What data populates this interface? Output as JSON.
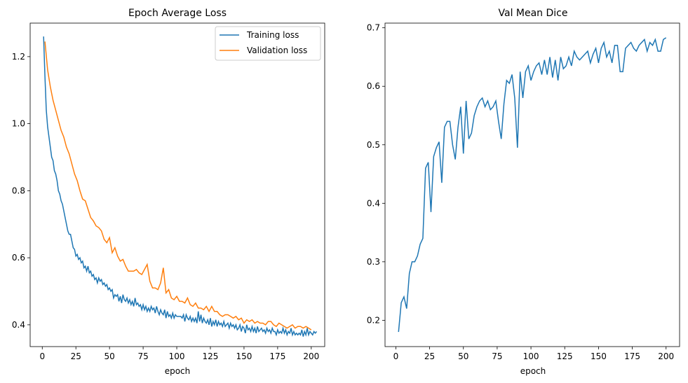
{
  "colors": {
    "blue": "#1f77b4",
    "orange": "#ff7f0e"
  },
  "chart_data": [
    {
      "type": "line",
      "title": "Epoch Average Loss",
      "xlabel": "epoch",
      "ylabel": "",
      "xlim": [
        -9,
        210
      ],
      "ylim": [
        0.335,
        1.3
      ],
      "xticks": [
        0,
        25,
        50,
        75,
        100,
        125,
        150,
        175,
        200
      ],
      "yticks": [
        0.4,
        0.6,
        0.8,
        1.0,
        1.2
      ],
      "ytick_decimals": 1,
      "legend": "top-right",
      "series": [
        {
          "name": "Training loss",
          "color": "#1f77b4",
          "x_start": 1,
          "x_step": 1,
          "values": [
            1.26,
            1.14,
            1.04,
            0.99,
            0.96,
            0.93,
            0.9,
            0.89,
            0.86,
            0.85,
            0.83,
            0.8,
            0.79,
            0.77,
            0.76,
            0.74,
            0.72,
            0.7,
            0.68,
            0.67,
            0.67,
            0.65,
            0.63,
            0.625,
            0.605,
            0.61,
            0.595,
            0.6,
            0.585,
            0.59,
            0.57,
            0.575,
            0.56,
            0.575,
            0.555,
            0.56,
            0.545,
            0.55,
            0.535,
            0.54,
            0.525,
            0.54,
            0.53,
            0.535,
            0.52,
            0.525,
            0.515,
            0.52,
            0.505,
            0.51,
            0.5,
            0.505,
            0.48,
            0.49,
            0.485,
            0.49,
            0.47,
            0.485,
            0.465,
            0.49,
            0.475,
            0.47,
            0.48,
            0.465,
            0.475,
            0.46,
            0.47,
            0.455,
            0.48,
            0.46,
            0.465,
            0.455,
            0.46,
            0.445,
            0.46,
            0.445,
            0.455,
            0.44,
            0.45,
            0.44,
            0.455,
            0.445,
            0.45,
            0.435,
            0.455,
            0.44,
            0.43,
            0.445,
            0.435,
            0.43,
            0.445,
            0.42,
            0.44,
            0.425,
            0.43,
            0.42,
            0.435,
            0.42,
            0.43,
            0.425,
            0.425,
            0.425,
            0.425,
            0.42,
            0.43,
            0.41,
            0.43,
            0.42,
            0.415,
            0.425,
            0.41,
            0.42,
            0.41,
            0.42,
            0.405,
            0.44,
            0.41,
            0.43,
            0.405,
            0.42,
            0.41,
            0.405,
            0.415,
            0.4,
            0.42,
            0.395,
            0.41,
            0.4,
            0.415,
            0.395,
            0.41,
            0.4,
            0.405,
            0.395,
            0.41,
            0.395,
            0.4,
            0.405,
            0.39,
            0.405,
            0.395,
            0.4,
            0.39,
            0.4,
            0.385,
            0.39,
            0.4,
            0.38,
            0.395,
            0.39,
            0.375,
            0.4,
            0.385,
            0.39,
            0.38,
            0.395,
            0.38,
            0.39,
            0.375,
            0.395,
            0.38,
            0.385,
            0.39,
            0.38,
            0.385,
            0.375,
            0.39,
            0.38,
            0.385,
            0.375,
            0.39,
            0.38,
            0.38,
            0.37,
            0.385,
            0.375,
            0.38,
            0.375,
            0.39,
            0.375,
            0.385,
            0.37,
            0.38,
            0.375,
            0.39,
            0.37,
            0.38,
            0.37,
            0.375,
            0.37,
            0.375,
            0.37,
            0.385,
            0.365,
            0.38,
            0.37,
            0.39,
            0.37,
            0.38,
            0.375,
            0.37,
            0.38,
            0.375,
            0.38
          ]
        },
        {
          "name": "Validation loss",
          "color": "#ff7f0e",
          "x_start": 2,
          "x_step": 2,
          "values": [
            1.245,
            1.16,
            1.11,
            1.07,
            1.04,
            1.01,
            0.98,
            0.96,
            0.93,
            0.91,
            0.88,
            0.85,
            0.83,
            0.8,
            0.775,
            0.77,
            0.745,
            0.72,
            0.71,
            0.695,
            0.69,
            0.68,
            0.655,
            0.645,
            0.66,
            0.615,
            0.63,
            0.605,
            0.59,
            0.595,
            0.575,
            0.56,
            0.56,
            0.56,
            0.565,
            0.555,
            0.55,
            0.565,
            0.58,
            0.53,
            0.51,
            0.51,
            0.505,
            0.525,
            0.57,
            0.495,
            0.505,
            0.48,
            0.475,
            0.485,
            0.47,
            0.47,
            0.465,
            0.48,
            0.46,
            0.455,
            0.465,
            0.45,
            0.45,
            0.445,
            0.455,
            0.44,
            0.455,
            0.44,
            0.44,
            0.43,
            0.425,
            0.43,
            0.43,
            0.425,
            0.42,
            0.425,
            0.415,
            0.42,
            0.405,
            0.415,
            0.41,
            0.415,
            0.405,
            0.41,
            0.405,
            0.405,
            0.4,
            0.41,
            0.41,
            0.4,
            0.395,
            0.405,
            0.4,
            0.395,
            0.39,
            0.395,
            0.4,
            0.39,
            0.395,
            0.395,
            0.39,
            0.395,
            0.39,
            0.385
          ]
        }
      ]
    },
    {
      "type": "line",
      "title": "Val Mean Dice",
      "xlabel": "epoch",
      "ylabel": "",
      "xlim": [
        -8,
        210
      ],
      "ylim": [
        0.155,
        0.708
      ],
      "xticks": [
        0,
        25,
        50,
        75,
        100,
        125,
        150,
        175,
        200
      ],
      "yticks": [
        0.2,
        0.3,
        0.4,
        0.5,
        0.6,
        0.7
      ],
      "ytick_decimals": 1,
      "legend": "none",
      "series": [
        {
          "name": "",
          "color": "#1f77b4",
          "x_start": 2,
          "x_step": 2,
          "values": [
            0.18,
            0.23,
            0.24,
            0.22,
            0.28,
            0.3,
            0.3,
            0.31,
            0.33,
            0.34,
            0.46,
            0.47,
            0.385,
            0.48,
            0.495,
            0.505,
            0.435,
            0.53,
            0.54,
            0.54,
            0.5,
            0.475,
            0.53,
            0.565,
            0.485,
            0.575,
            0.51,
            0.52,
            0.55,
            0.565,
            0.575,
            0.58,
            0.565,
            0.575,
            0.56,
            0.565,
            0.575,
            0.54,
            0.51,
            0.57,
            0.61,
            0.605,
            0.62,
            0.58,
            0.495,
            0.625,
            0.58,
            0.625,
            0.635,
            0.61,
            0.625,
            0.635,
            0.64,
            0.62,
            0.645,
            0.62,
            0.65,
            0.615,
            0.645,
            0.61,
            0.65,
            0.63,
            0.635,
            0.65,
            0.635,
            0.66,
            0.65,
            0.645,
            0.65,
            0.655,
            0.66,
            0.64,
            0.655,
            0.665,
            0.64,
            0.665,
            0.675,
            0.65,
            0.66,
            0.64,
            0.67,
            0.67,
            0.625,
            0.625,
            0.665,
            0.67,
            0.675,
            0.665,
            0.66,
            0.67,
            0.675,
            0.68,
            0.66,
            0.675,
            0.67,
            0.68,
            0.66,
            0.66,
            0.68,
            0.683
          ]
        }
      ]
    }
  ]
}
